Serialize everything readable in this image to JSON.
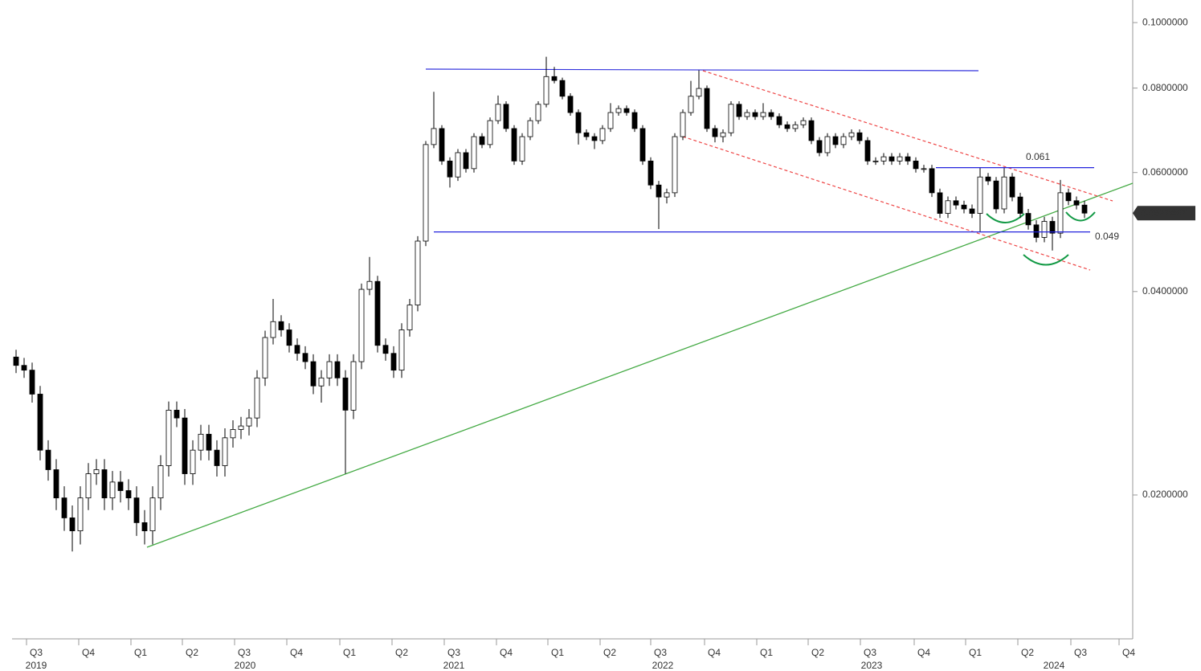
{
  "chart_data": {
    "type": "candlestick",
    "open": [
      0.032,
      0.0311,
      0.0306,
      0.0282,
      0.0233,
      0.0218,
      0.0198,
      0.0185,
      0.0177,
      0.0198,
      0.0215,
      0.0218,
      0.0198,
      0.0209,
      0.0203,
      0.0198,
      0.0182,
      0.0177,
      0.0198,
      0.0221,
      0.0267,
      0.026,
      0.0215,
      0.0233,
      0.0246,
      0.0233,
      0.0221,
      0.0243,
      0.025,
      0.0253,
      0.026,
      0.0298,
      0.0342,
      0.0361,
      0.0351,
      0.0333,
      0.0324,
      0.0315,
      0.029,
      0.0298,
      0.0315,
      0.0298,
      0.0267,
      0.0315,
      0.0403,
      0.0414,
      0.0333,
      0.0324,
      0.0306,
      0.0351,
      0.0382,
      0.0475,
      0.066,
      0.0697,
      0.0624,
      0.0591,
      0.0642,
      0.0608,
      0.0678,
      0.066,
      0.0716,
      0.0757,
      0.0697,
      0.0624,
      0.0678,
      0.0716,
      0.0757,
      0.0832,
      0.0821,
      0.0778,
      0.0736,
      0.0687,
      0.0678,
      0.0669,
      0.0697,
      0.0736,
      0.0746,
      0.0736,
      0.0697,
      0.0624,
      0.0575,
      0.0552,
      0.056,
      0.0678,
      0.0736,
      0.0778,
      0.0799,
      0.0697,
      0.0678,
      0.0687,
      0.0757,
      0.0726,
      0.0736,
      0.0726,
      0.0736,
      0.0726,
      0.0706,
      0.0697,
      0.0706,
      0.0716,
      0.0669,
      0.0642,
      0.0678,
      0.066,
      0.0678,
      0.0687,
      0.0669,
      0.0624,
      0.0624,
      0.0633,
      0.0624,
      0.0633,
      0.0624,
      0.0608,
      0.0608,
      0.056,
      0.0522,
      0.0545,
      0.0537,
      0.053,
      0.0522,
      0.0591,
      0.0583,
      0.053,
      0.0591,
      0.0552,
      0.0522,
      0.0502,
      0.0481,
      0.0508,
      0.0488,
      0.056,
      0.0545,
      0.0537
    ],
    "high": [
      0.0328,
      0.0319,
      0.0314,
      0.029,
      0.0241,
      0.0226,
      0.0206,
      0.0193,
      0.0206,
      0.0223,
      0.0226,
      0.0226,
      0.0217,
      0.0217,
      0.0211,
      0.0206,
      0.019,
      0.0206,
      0.0229,
      0.0275,
      0.0275,
      0.0268,
      0.0241,
      0.0254,
      0.0254,
      0.0241,
      0.0251,
      0.0258,
      0.0261,
      0.0268,
      0.0306,
      0.035,
      0.039,
      0.0369,
      0.0359,
      0.0341,
      0.0332,
      0.0323,
      0.0306,
      0.0323,
      0.0323,
      0.0306,
      0.0323,
      0.0411,
      0.045,
      0.0422,
      0.0341,
      0.0332,
      0.0359,
      0.039,
      0.0483,
      0.0668,
      0.079,
      0.0705,
      0.0632,
      0.065,
      0.065,
      0.0686,
      0.0686,
      0.0724,
      0.078,
      0.0765,
      0.0705,
      0.0686,
      0.0724,
      0.0765,
      0.089,
      0.086,
      0.0829,
      0.0786,
      0.0744,
      0.0695,
      0.0686,
      0.0705,
      0.076,
      0.0754,
      0.0754,
      0.0744,
      0.0705,
      0.0632,
      0.0583,
      0.0568,
      0.0686,
      0.0744,
      0.082,
      0.085,
      0.0807,
      0.0705,
      0.0695,
      0.0765,
      0.0765,
      0.0744,
      0.0744,
      0.076,
      0.0744,
      0.0734,
      0.0714,
      0.0714,
      0.0724,
      0.0724,
      0.0677,
      0.0686,
      0.0686,
      0.0686,
      0.0695,
      0.0695,
      0.0677,
      0.0632,
      0.0641,
      0.0641,
      0.0641,
      0.0641,
      0.0632,
      0.0616,
      0.0616,
      0.0568,
      0.0553,
      0.0553,
      0.0545,
      0.0538,
      0.061,
      0.0599,
      0.0591,
      0.061,
      0.0599,
      0.056,
      0.053,
      0.051,
      0.0516,
      0.0516,
      0.0585,
      0.0568,
      0.0553,
      0.0545
    ],
    "low": [
      0.0303,
      0.0298,
      0.0274,
      0.0225,
      0.021,
      0.019,
      0.0177,
      0.0165,
      0.0169,
      0.019,
      0.0207,
      0.019,
      0.019,
      0.0195,
      0.019,
      0.0174,
      0.0169,
      0.0169,
      0.019,
      0.0213,
      0.0252,
      0.0207,
      0.0207,
      0.0225,
      0.0225,
      0.0213,
      0.0213,
      0.0235,
      0.0242,
      0.0245,
      0.0252,
      0.029,
      0.0334,
      0.0343,
      0.0325,
      0.0316,
      0.0307,
      0.0282,
      0.0274,
      0.029,
      0.029,
      0.0215,
      0.0259,
      0.0307,
      0.0395,
      0.0325,
      0.0316,
      0.0298,
      0.0298,
      0.0343,
      0.0374,
      0.0467,
      0.0652,
      0.0616,
      0.057,
      0.0583,
      0.06,
      0.06,
      0.0652,
      0.0652,
      0.0708,
      0.0689,
      0.0616,
      0.0616,
      0.067,
      0.0708,
      0.0749,
      0.0813,
      0.077,
      0.0728,
      0.066,
      0.067,
      0.065,
      0.0661,
      0.0689,
      0.0728,
      0.0728,
      0.0689,
      0.0616,
      0.0567,
      0.0495,
      0.054,
      0.0552,
      0.067,
      0.0728,
      0.077,
      0.0689,
      0.0665,
      0.0665,
      0.0679,
      0.0718,
      0.0718,
      0.0718,
      0.0718,
      0.0718,
      0.0698,
      0.0689,
      0.0689,
      0.0698,
      0.0661,
      0.0634,
      0.0634,
      0.0652,
      0.0652,
      0.067,
      0.0661,
      0.0616,
      0.0616,
      0.0616,
      0.0616,
      0.0616,
      0.0616,
      0.06,
      0.06,
      0.0552,
      0.0514,
      0.0514,
      0.0529,
      0.0522,
      0.0514,
      0.049,
      0.0575,
      0.0522,
      0.0522,
      0.0544,
      0.0514,
      0.0494,
      0.0473,
      0.0473,
      0.046,
      0.048,
      0.0537,
      0.0529,
      0.0514
    ],
    "close": [
      0.0311,
      0.0306,
      0.0282,
      0.0233,
      0.0218,
      0.0198,
      0.0185,
      0.0177,
      0.0198,
      0.0215,
      0.0218,
      0.0198,
      0.0209,
      0.0203,
      0.0198,
      0.0182,
      0.0177,
      0.0198,
      0.0221,
      0.0267,
      0.026,
      0.0215,
      0.0233,
      0.0246,
      0.0233,
      0.0221,
      0.0243,
      0.025,
      0.0253,
      0.026,
      0.0298,
      0.0342,
      0.0361,
      0.0351,
      0.0333,
      0.0324,
      0.0315,
      0.029,
      0.0298,
      0.0315,
      0.0298,
      0.0267,
      0.0315,
      0.0403,
      0.0414,
      0.0333,
      0.0324,
      0.0306,
      0.0351,
      0.0382,
      0.0475,
      0.066,
      0.0697,
      0.0624,
      0.0591,
      0.0642,
      0.0608,
      0.0678,
      0.066,
      0.0716,
      0.0757,
      0.0697,
      0.0624,
      0.0678,
      0.0716,
      0.0757,
      0.0832,
      0.0821,
      0.0778,
      0.0736,
      0.0687,
      0.0678,
      0.0669,
      0.0697,
      0.0736,
      0.0746,
      0.0736,
      0.0697,
      0.0624,
      0.0575,
      0.0552,
      0.056,
      0.0678,
      0.0736,
      0.0778,
      0.0799,
      0.0697,
      0.0678,
      0.0687,
      0.0757,
      0.0726,
      0.0736,
      0.0726,
      0.0736,
      0.0726,
      0.0706,
      0.0697,
      0.0706,
      0.0716,
      0.0669,
      0.0642,
      0.0678,
      0.066,
      0.0678,
      0.0687,
      0.0669,
      0.0624,
      0.0624,
      0.0633,
      0.0624,
      0.0633,
      0.0624,
      0.0608,
      0.0608,
      0.056,
      0.0522,
      0.0545,
      0.0537,
      0.053,
      0.0522,
      0.0591,
      0.0583,
      0.053,
      0.0591,
      0.0552,
      0.0522,
      0.0502,
      0.0481,
      0.0508,
      0.0488,
      0.056,
      0.0545,
      0.0537,
      0.0522497
    ],
    "up_color": "#ffffff",
    "down_color": "#000000",
    "log_scale": true,
    "ylim": [
      0.01225,
      0.108
    ],
    "yticks": [
      {
        "value": 0.1,
        "label": "0.1000000"
      },
      {
        "value": 0.08,
        "label": "0.0800000"
      },
      {
        "value": 0.06,
        "label": "0.0600000"
      },
      {
        "value": 0.04,
        "label": "0.0400000"
      },
      {
        "value": 0.02,
        "label": "0.0200000"
      }
    ],
    "xlim": [
      -0.5,
      139
    ],
    "xticks": [
      {
        "value": 2.5,
        "label": "Q3"
      },
      {
        "value": 9,
        "label": "Q4"
      },
      {
        "value": 15.5,
        "label": "Q1"
      },
      {
        "value": 21.9,
        "label": "Q2"
      },
      {
        "value": 28.4,
        "label": "Q3"
      },
      {
        "value": 34.9,
        "label": "Q4"
      },
      {
        "value": 41.5,
        "label": "Q1"
      },
      {
        "value": 48,
        "label": "Q2"
      },
      {
        "value": 54.5,
        "label": "Q3"
      },
      {
        "value": 61,
        "label": "Q4"
      },
      {
        "value": 67.4,
        "label": "Q1"
      },
      {
        "value": 73.9,
        "label": "Q2"
      },
      {
        "value": 80.2,
        "label": "Q3"
      },
      {
        "value": 86.9,
        "label": "Q4"
      },
      {
        "value": 93.4,
        "label": "Q1"
      },
      {
        "value": 99.8,
        "label": "Q2"
      },
      {
        "value": 106.3,
        "label": "Q3"
      },
      {
        "value": 113,
        "label": "Q4"
      },
      {
        "value": 119.4,
        "label": "Q1"
      },
      {
        "value": 125.9,
        "label": "Q2"
      },
      {
        "value": 132.5,
        "label": "Q3"
      },
      {
        "value": 138.5,
        "label": "Q4"
      }
    ],
    "year_labels": [
      {
        "value": 2.5,
        "label": "2019"
      },
      {
        "value": 28.5,
        "label": "2020"
      },
      {
        "value": 54.5,
        "label": "2021"
      },
      {
        "value": 80.5,
        "label": "2022"
      },
      {
        "value": 106.5,
        "label": "2023"
      },
      {
        "value": 129.2,
        "label": "2024"
      }
    ],
    "levels": [
      {
        "value": 0.061,
        "label": "0.061"
      },
      {
        "value": 0.049,
        "label": "0.049"
      }
    ],
    "level_color": "#2222dd"
  }
}
